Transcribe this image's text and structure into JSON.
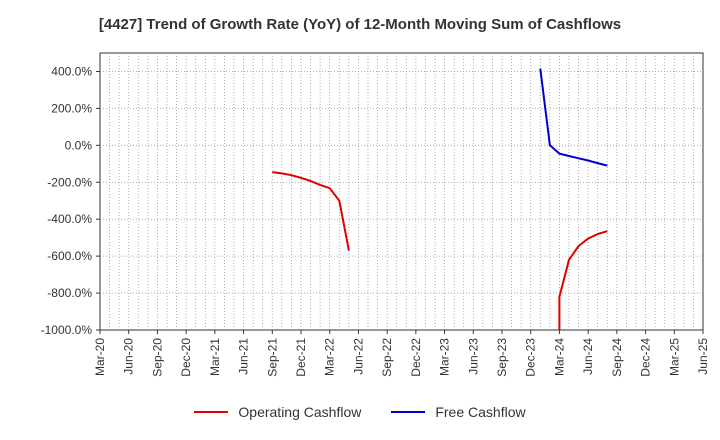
{
  "chart_data": {
    "type": "line",
    "title": "[4427]  Trend of Growth Rate (YoY) of 12-Month Moving Sum of Cashflows",
    "xlabel": "",
    "ylabel": "",
    "ylim": [
      -1000,
      500
    ],
    "y_ticks": [
      400,
      200,
      0,
      -200,
      -400,
      -600,
      -800,
      -1000
    ],
    "y_tick_labels": [
      "400.0%",
      "200.0%",
      "0.0%",
      "-200.0%",
      "-400.0%",
      "-600.0%",
      "-800.0%",
      "-1000.0%"
    ],
    "x_tick_labels": [
      "Mar-20",
      "Jun-20",
      "Sep-20",
      "Dec-20",
      "Mar-21",
      "Jun-21",
      "Sep-21",
      "Dec-21",
      "Mar-22",
      "Jun-22",
      "Sep-22",
      "Dec-22",
      "Mar-23",
      "Jun-23",
      "Sep-23",
      "Dec-23",
      "Mar-24",
      "Jun-24",
      "Sep-24",
      "Dec-24",
      "Mar-25",
      "Jun-25"
    ],
    "x_categories": [
      "Mar-20",
      "Apr-20",
      "May-20",
      "Jun-20",
      "Jul-20",
      "Aug-20",
      "Sep-20",
      "Oct-20",
      "Nov-20",
      "Dec-20",
      "Jan-21",
      "Feb-21",
      "Mar-21",
      "Apr-21",
      "May-21",
      "Jun-21",
      "Jul-21",
      "Aug-21",
      "Sep-21",
      "Oct-21",
      "Nov-21",
      "Dec-21",
      "Jan-22",
      "Feb-22",
      "Mar-22",
      "Apr-22",
      "May-22",
      "Jun-22",
      "Jul-22",
      "Aug-22",
      "Sep-22",
      "Oct-22",
      "Nov-22",
      "Dec-22",
      "Jan-23",
      "Feb-23",
      "Mar-23",
      "Apr-23",
      "May-23",
      "Jun-23",
      "Jul-23",
      "Aug-23",
      "Sep-23",
      "Oct-23",
      "Nov-23",
      "Dec-23",
      "Jan-24",
      "Feb-24",
      "Mar-24",
      "Apr-24",
      "May-24",
      "Jun-24",
      "Jul-24",
      "Aug-24",
      "Sep-24",
      "Oct-24",
      "Nov-24",
      "Dec-24",
      "Jan-25",
      "Feb-25",
      "Mar-25",
      "Apr-25",
      "May-25",
      "Jun-25"
    ],
    "grid": true,
    "legend_position": "bottom-center",
    "series": [
      {
        "name": "Operating Cashflow",
        "color": "#e00000",
        "points": [
          {
            "x": "Sep-21",
            "y": -145
          },
          {
            "x": "Oct-21",
            "y": -152
          },
          {
            "x": "Nov-21",
            "y": -162
          },
          {
            "x": "Dec-21",
            "y": -176
          },
          {
            "x": "Jan-22",
            "y": -193
          },
          {
            "x": "Feb-22",
            "y": -214
          },
          {
            "x": "Mar-22",
            "y": -232
          },
          {
            "x": "Apr-22",
            "y": -300
          },
          {
            "x": "May-22",
            "y": -570
          }
        ]
      },
      {
        "name": "Operating Cashflow",
        "color": "#e00000",
        "points": [
          {
            "x": "Mar-24",
            "y": -1000
          },
          {
            "x": "Mar-24",
            "y": -820
          },
          {
            "x": "Apr-24",
            "y": -620
          },
          {
            "x": "May-24",
            "y": -545
          },
          {
            "x": "Jun-24",
            "y": -505
          },
          {
            "x": "Jul-24",
            "y": -480
          },
          {
            "x": "Aug-24",
            "y": -465
          }
        ]
      },
      {
        "name": "Free Cashflow",
        "color": "#0000cc",
        "points": [
          {
            "x": "Jan-24",
            "y": 415
          },
          {
            "x": "Feb-24",
            "y": 0
          },
          {
            "x": "Mar-24",
            "y": -45
          },
          {
            "x": "Apr-24",
            "y": -58
          },
          {
            "x": "May-24",
            "y": -70
          },
          {
            "x": "Jun-24",
            "y": -82
          },
          {
            "x": "Jul-24",
            "y": -96
          },
          {
            "x": "Aug-24",
            "y": -110
          }
        ]
      }
    ],
    "legend": [
      {
        "label": "Operating Cashflow",
        "color": "#e00000"
      },
      {
        "label": "Free Cashflow",
        "color": "#0000cc"
      }
    ]
  }
}
